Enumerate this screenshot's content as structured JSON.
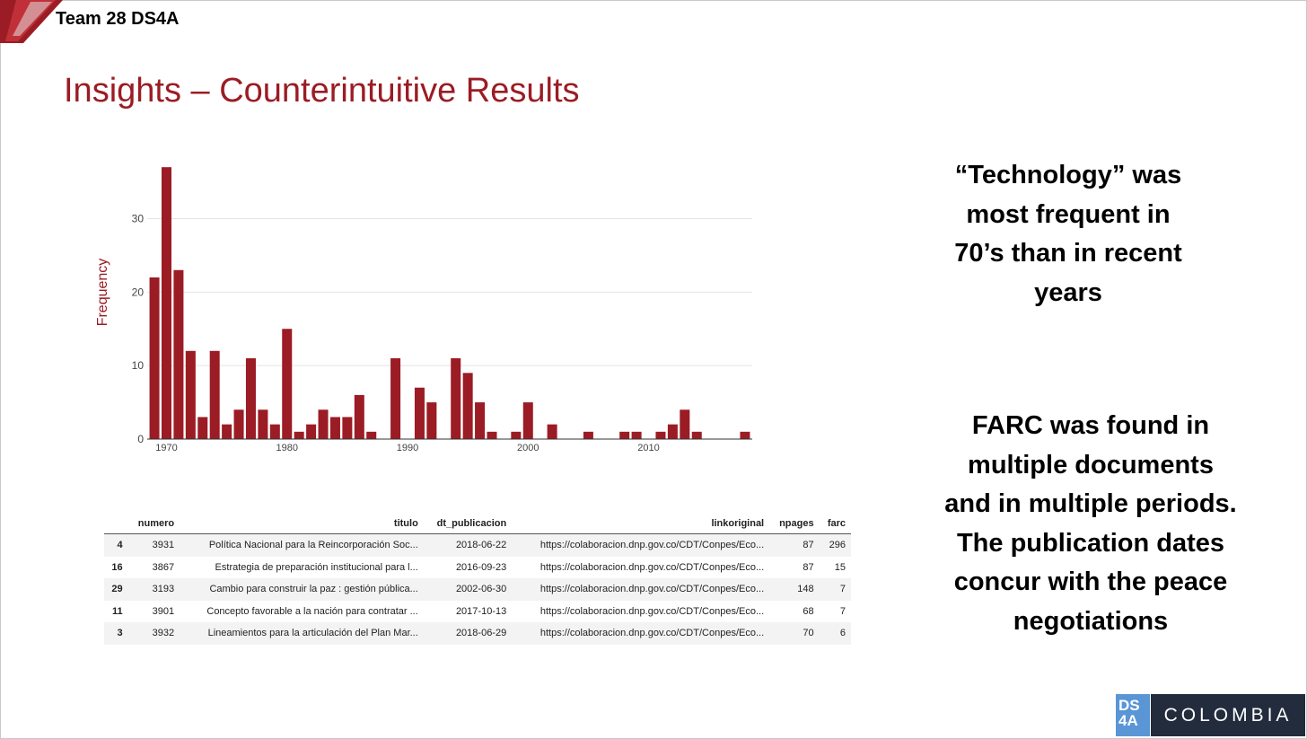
{
  "header": {
    "team": "Team 28 DS4A"
  },
  "slide": {
    "title": "Insights – Counterintuitive Results"
  },
  "chart_data": {
    "type": "bar",
    "ylabel": "Frequency",
    "xlabel": "",
    "x": [
      1969,
      1970,
      1971,
      1972,
      1973,
      1974,
      1975,
      1976,
      1977,
      1978,
      1979,
      1980,
      1981,
      1982,
      1983,
      1984,
      1985,
      1986,
      1987,
      1988,
      1989,
      1990,
      1991,
      1992,
      1993,
      1994,
      1995,
      1996,
      1997,
      1998,
      1999,
      2000,
      2001,
      2002,
      2003,
      2004,
      2005,
      2006,
      2007,
      2008,
      2009,
      2010,
      2011,
      2012,
      2013,
      2014,
      2015,
      2016,
      2017,
      2018
    ],
    "values": [
      22,
      37,
      23,
      12,
      3,
      12,
      2,
      4,
      11,
      4,
      2,
      15,
      1,
      2,
      4,
      3,
      3,
      6,
      1,
      0,
      11,
      0,
      7,
      5,
      0,
      11,
      9,
      5,
      1,
      0,
      1,
      5,
      0,
      2,
      0,
      0,
      1,
      0,
      0,
      1,
      1,
      0,
      1,
      2,
      4,
      1,
      0,
      0,
      0,
      1
    ],
    "xticks": [
      1970,
      1980,
      1990,
      2000,
      2010
    ],
    "yticks": [
      0,
      10,
      20,
      30
    ],
    "ylim": [
      0,
      38
    ],
    "xlim": [
      1968.4,
      2018.6
    ],
    "color": "#9b1c24",
    "grid": true
  },
  "table": {
    "columns": [
      "numero",
      "titulo",
      "dt_publicacion",
      "linkoriginal",
      "npages",
      "farc"
    ],
    "rows": [
      {
        "index": "4",
        "numero": "3931",
        "titulo": "Política Nacional para la Reincorporación Soc...",
        "dt_publicacion": "2018-06-22",
        "linkoriginal": "https://colaboracion.dnp.gov.co/CDT/Conpes/Eco...",
        "npages": "87",
        "farc": "296"
      },
      {
        "index": "16",
        "numero": "3867",
        "titulo": "Estrategia de preparación institucional para l...",
        "dt_publicacion": "2016-09-23",
        "linkoriginal": "https://colaboracion.dnp.gov.co/CDT/Conpes/Eco...",
        "npages": "87",
        "farc": "15"
      },
      {
        "index": "29",
        "numero": "3193",
        "titulo": "Cambio para construir la paz : gestión pública...",
        "dt_publicacion": "2002-06-30",
        "linkoriginal": "https://colaboracion.dnp.gov.co/CDT/Conpes/Eco...",
        "npages": "148",
        "farc": "7"
      },
      {
        "index": "11",
        "numero": "3901",
        "titulo": "Concepto favorable a la nación para contratar ...",
        "dt_publicacion": "2017-10-13",
        "linkoriginal": "https://colaboracion.dnp.gov.co/CDT/Conpes/Eco...",
        "npages": "68",
        "farc": "7"
      },
      {
        "index": "3",
        "numero": "3932",
        "titulo": "Lineamientos para la articulación del Plan Mar...",
        "dt_publicacion": "2018-06-29",
        "linkoriginal": "https://colaboracion.dnp.gov.co/CDT/Conpes/Eco...",
        "npages": "70",
        "farc": "6"
      }
    ]
  },
  "side": {
    "insight1": [
      "“Technology” was",
      "most frequent in",
      "70’s than in recent",
      "years"
    ],
    "insight2": [
      "FARC was found in",
      "multiple documents",
      "and in multiple periods.",
      "The publication dates",
      "concur with the peace",
      "negotiations"
    ]
  },
  "logo": {
    "ds_top": "DS",
    "ds_bottom": "4A",
    "country": "COLOMBIA"
  },
  "colors": {
    "accent": "#9b1c24",
    "logo_blue": "#5a95d6",
    "logo_dark": "#222c3d"
  }
}
